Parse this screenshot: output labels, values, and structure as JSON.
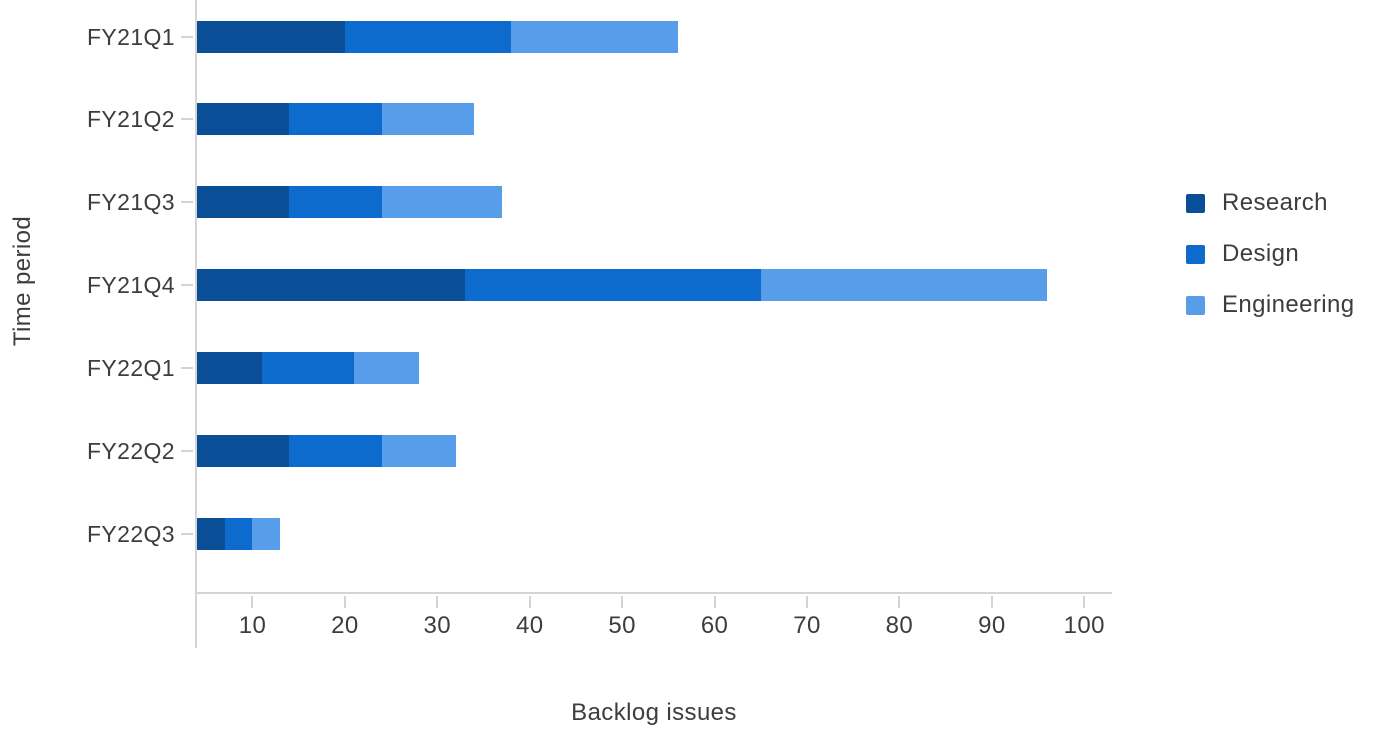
{
  "chart_data": {
    "type": "bar",
    "orientation": "horizontal",
    "stacked": true,
    "title": "",
    "xlabel": "Backlog issues",
    "ylabel": "Time period",
    "categories": [
      "FY21Q1",
      "FY21Q2",
      "FY21Q3",
      "FY21Q4",
      "FY22Q1",
      "FY22Q2",
      "FY22Q3"
    ],
    "series": [
      {
        "name": "Research",
        "color": "#0a4e97",
        "values": [
          20,
          14,
          14,
          33,
          11,
          14,
          7
        ]
      },
      {
        "name": "Design",
        "color": "#0d6bce",
        "values": [
          18,
          10,
          10,
          32,
          10,
          10,
          3
        ]
      },
      {
        "name": "Engineering",
        "color": "#579de9",
        "values": [
          18,
          10,
          13,
          31,
          7,
          8,
          3
        ]
      }
    ],
    "totals": [
      56,
      34,
      37,
      96,
      28,
      32,
      13
    ],
    "x_ticks": [
      10,
      20,
      30,
      40,
      50,
      60,
      70,
      80,
      90,
      100
    ],
    "xlim": [
      4,
      103
    ],
    "grid": false,
    "legend_position": "right"
  },
  "styles": {
    "axis_color": "#d4d4d4",
    "text_color": "#3d3d3d",
    "background": "#ffffff"
  }
}
